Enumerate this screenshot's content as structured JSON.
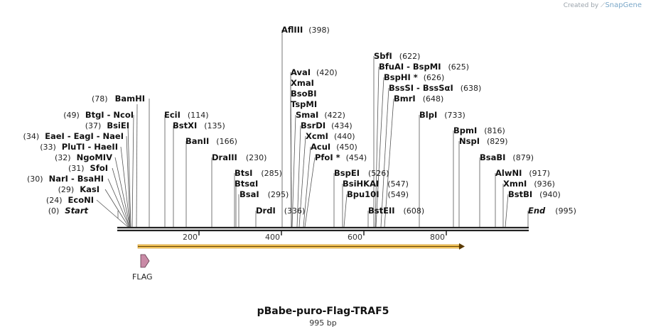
{
  "branding": {
    "created_by": "Created by",
    "app": "SnapGene"
  },
  "map": {
    "title": "pBabe-puro-Flag-TRAF5",
    "length_label": "995 bp",
    "total_bp": 995,
    "ticks": [
      "200",
      "400",
      "600",
      "800"
    ],
    "feature": {
      "label": "FLAG",
      "color": "#c98aa6"
    },
    "orf_color": "#f0b030"
  },
  "sites": [
    {
      "name": "AflIII",
      "pos": "(398)"
    },
    {
      "name": "AvaI",
      "pos": "(420)"
    },
    {
      "name": "XmaI"
    },
    {
      "name": "BsoBI"
    },
    {
      "name": "TspMI"
    },
    {
      "name": "SmaI",
      "pos": "(422)"
    },
    {
      "name": "BsrDI",
      "pos": "(434)"
    },
    {
      "name": "XcmI",
      "pos": "(440)"
    },
    {
      "name": "AcuI",
      "pos": "(450)"
    },
    {
      "name": "PfoI *",
      "pos": "(454)"
    },
    {
      "name": "SbfI",
      "pos": "(622)"
    },
    {
      "name": "BfuAI",
      "name2": "BspMI",
      "pos": "(625)"
    },
    {
      "name": "BspHI *",
      "pos": "(626)"
    },
    {
      "name": "BssSI",
      "name2": "BssSαI",
      "pos": "(638)"
    },
    {
      "name": "BmrI",
      "pos": "(648)"
    },
    {
      "name": "BlpI",
      "pos": "(733)"
    },
    {
      "name": "BpmI",
      "pos": "(816)"
    },
    {
      "name": "NspI",
      "pos": "(829)"
    },
    {
      "name": "BsaBI",
      "pos": "(879)"
    },
    {
      "name": "AlwNI",
      "pos": "(917)"
    },
    {
      "name": "XmnI",
      "pos": "(936)"
    },
    {
      "name": "BstBI",
      "pos": "(940)"
    },
    {
      "name": "End",
      "pos": "(995)"
    },
    {
      "name": "BamHI",
      "pos": "(78)"
    },
    {
      "name": "BtgI",
      "name2": "NcoI",
      "pos": "(49)"
    },
    {
      "name": "BsiEI",
      "pos": "(37)"
    },
    {
      "name": "EaeI",
      "name2": "EagI",
      "name3": "NaeI",
      "pos": "(34)"
    },
    {
      "name": "PluTI",
      "name2": "HaeII",
      "pos": "(33)"
    },
    {
      "name": "NgoMIV",
      "pos": "(32)"
    },
    {
      "name": "SfoI",
      "pos": "(31)"
    },
    {
      "name": "NarI",
      "name2": "BsaHI",
      "pos": "(30)"
    },
    {
      "name": "KasI",
      "pos": "(29)"
    },
    {
      "name": "EcoNI",
      "pos": "(24)"
    },
    {
      "name": "Start",
      "pos": "(0)"
    },
    {
      "name": "EciI",
      "pos": "(114)"
    },
    {
      "name": "BstXI",
      "pos": "(135)"
    },
    {
      "name": "BanII",
      "pos": "(166)"
    },
    {
      "name": "DraIII",
      "pos": "(230)"
    },
    {
      "name": "BtsI",
      "pos": "(285)"
    },
    {
      "name": "BtsαI"
    },
    {
      "name": "BsaI",
      "pos": "(295)"
    },
    {
      "name": "DrdI",
      "pos": "(336)"
    },
    {
      "name": "BspEI",
      "pos": "(526)"
    },
    {
      "name": "BsiHKAI",
      "pos": "(547)"
    },
    {
      "name": "Bpu10I",
      "pos": "(549)"
    },
    {
      "name": "BstEII",
      "pos": "(608)"
    }
  ]
}
